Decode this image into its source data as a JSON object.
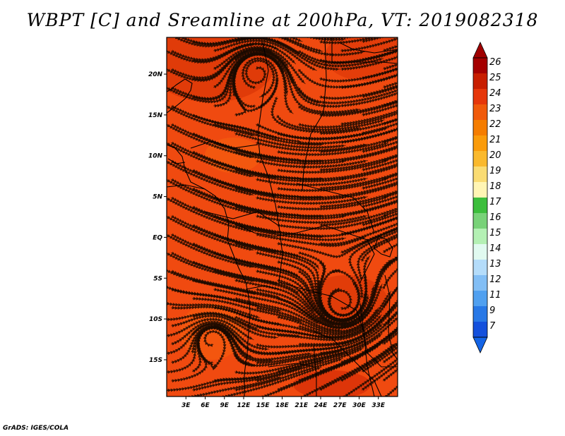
{
  "title": "WBPT [C] and Sreamline at 200hPa, VT: 2019082318",
  "credit": "GrADS: IGES/COLA",
  "map": {
    "lon_range": [
      0,
      36
    ],
    "lat_range": [
      -19.5,
      24.5
    ],
    "x_ticks": [
      "3E",
      "6E",
      "9E",
      "12E",
      "15E",
      "18E",
      "21E",
      "24E",
      "27E",
      "30E",
      "33E"
    ],
    "y_ticks": [
      "20N",
      "15N",
      "10N",
      "5N",
      "EQ",
      "5S",
      "10S",
      "15S"
    ],
    "field": "WBPT",
    "units": "C",
    "level": "200hPa",
    "valid_time": "2019082318",
    "dominant_color": "#f04a10",
    "streamline_color": "#1a0a00"
  },
  "colorbar": {
    "labels": [
      "26",
      "25",
      "24",
      "23",
      "22",
      "21",
      "20",
      "19",
      "18",
      "17",
      "16",
      "15",
      "14",
      "13",
      "12",
      "11",
      "9",
      "7"
    ],
    "colors": [
      "#a50000",
      "#c81e00",
      "#e6370a",
      "#f05a0a",
      "#f57d00",
      "#fa9b0a",
      "#fab92d",
      "#fadc73",
      "#fff5b4",
      "#3cbe3c",
      "#78d278",
      "#b4f0b4",
      "#e1faf0",
      "#b4dcfa",
      "#82bef5",
      "#50a0f0",
      "#2878e6",
      "#1450dc"
    ],
    "top_arrow_color": "#a00000",
    "bottom_arrow_color": "#1464e6"
  }
}
